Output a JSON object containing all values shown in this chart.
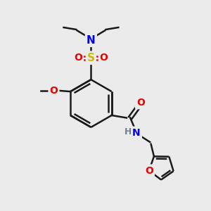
{
  "bg_color": "#ebebeb",
  "bond_color": "#1a1a1a",
  "bond_width": 1.8,
  "atom_colors": {
    "N": "#0000ee",
    "O": "#ee0000",
    "S": "#ccbb00",
    "H": "#708090",
    "C": "#1a1a1a"
  },
  "figsize": [
    3.0,
    3.0
  ],
  "dpi": 100
}
